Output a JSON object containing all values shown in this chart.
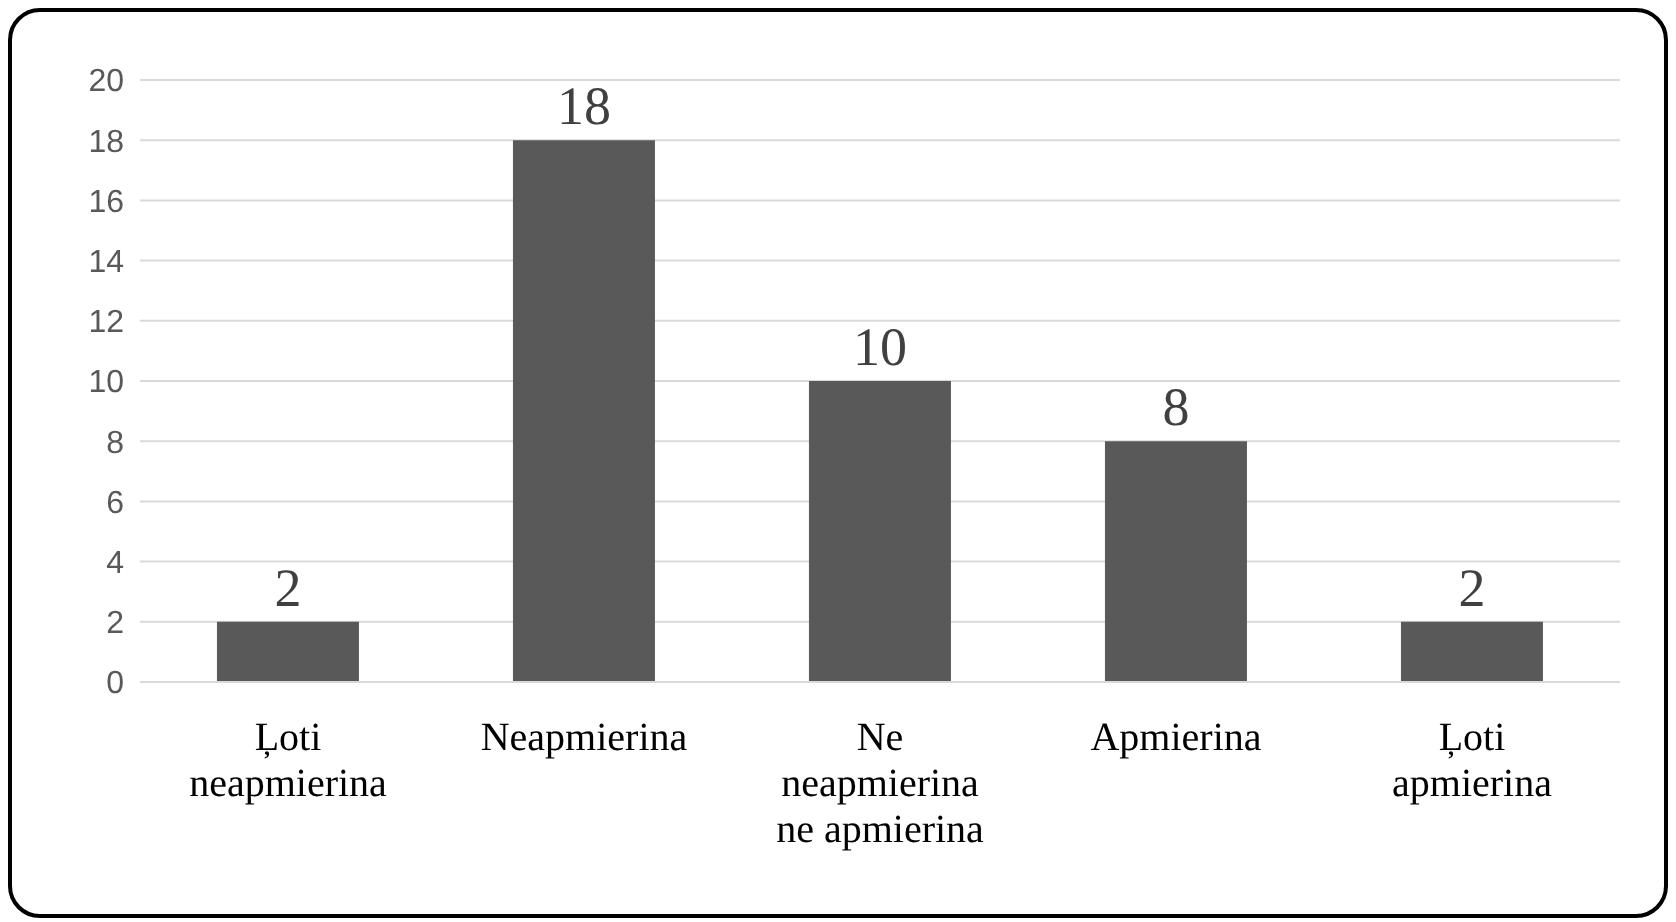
{
  "chart_data": {
    "type": "bar",
    "categories": [
      "Ļoti neapmierina",
      "Neapmierina",
      "Ne neapmierina ne apmierina",
      "Apmierina",
      "Ļoti apmierina"
    ],
    "values": [
      2,
      18,
      10,
      8,
      2
    ],
    "color": "#595959",
    "ylim": [
      0,
      20
    ],
    "yticks": [
      0,
      2,
      4,
      6,
      8,
      10,
      12,
      14,
      16,
      18,
      20
    ],
    "grid": "y",
    "data_labels": true,
    "legend": false
  }
}
